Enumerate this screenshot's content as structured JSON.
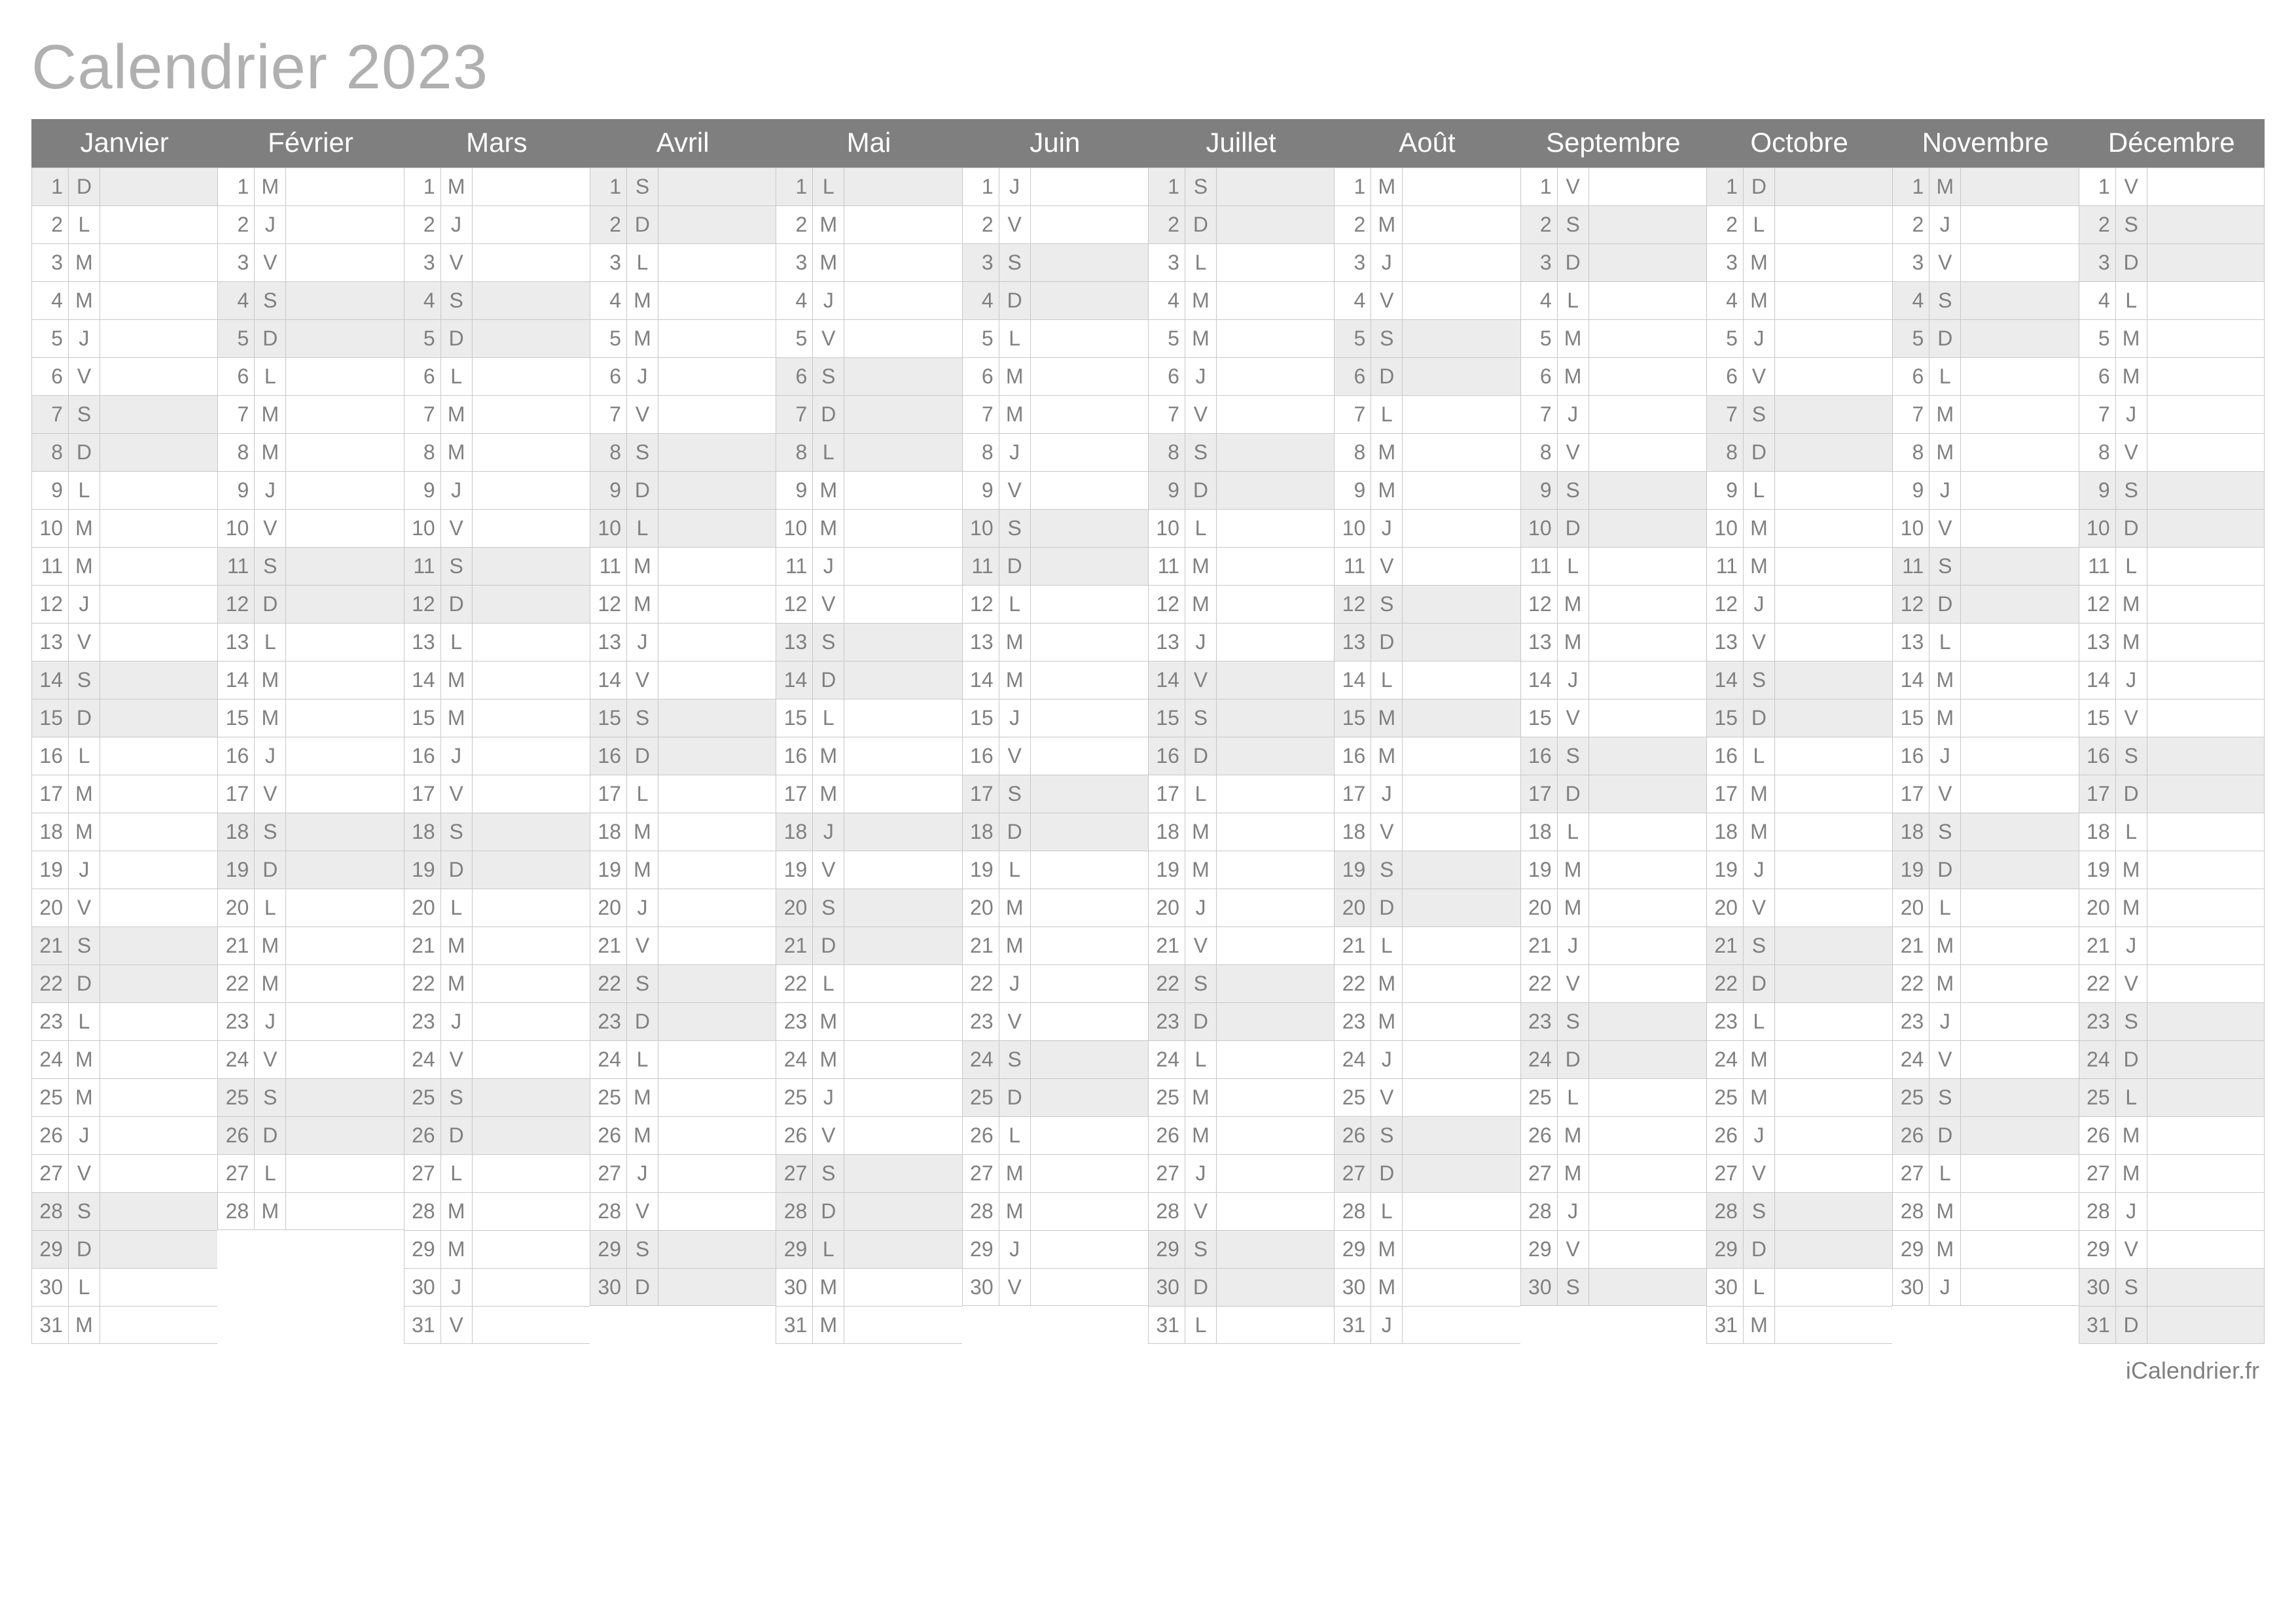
{
  "title": "Calendrier 2023",
  "footer": "iCalendrier.fr",
  "colors": {
    "title": "#b0b0b0",
    "header_bg": "#7f7f7f",
    "header_text": "#ffffff",
    "border": "#c8c8c8",
    "text": "#808080",
    "weekend_bg": "#ececec",
    "weekday_bg": "#ffffff",
    "footer": "#808080"
  },
  "day_letters": [
    "L",
    "M",
    "M",
    "J",
    "V",
    "S",
    "D"
  ],
  "weekend_indices": [
    5,
    6
  ],
  "months": [
    {
      "name": "Janvier",
      "days": 31,
      "start": 6
    },
    {
      "name": "Février",
      "days": 28,
      "start": 2
    },
    {
      "name": "Mars",
      "days": 31,
      "start": 2
    },
    {
      "name": "Avril",
      "days": 30,
      "start": 5
    },
    {
      "name": "Mai",
      "days": 31,
      "start": 0
    },
    {
      "name": "Juin",
      "days": 30,
      "start": 3
    },
    {
      "name": "Juillet",
      "days": 31,
      "start": 5
    },
    {
      "name": "Août",
      "days": 31,
      "start": 1
    },
    {
      "name": "Septembre",
      "days": 30,
      "start": 4
    },
    {
      "name": "Octobre",
      "days": 31,
      "start": 6
    },
    {
      "name": "Novembre",
      "days": 30,
      "start": 2
    },
    {
      "name": "Décembre",
      "days": 31,
      "start": 4
    }
  ],
  "holidays": {
    "Avril": [
      10
    ],
    "Mai": [
      1,
      8,
      18,
      29
    ],
    "Juillet": [
      14
    ],
    "Août": [
      15
    ],
    "Novembre": [
      1,
      11
    ],
    "Décembre": [
      25
    ]
  }
}
